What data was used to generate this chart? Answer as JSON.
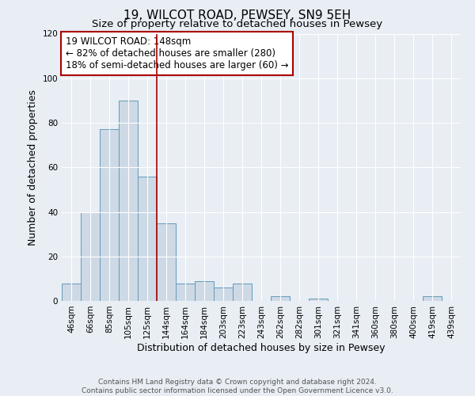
{
  "title": "19, WILCOT ROAD, PEWSEY, SN9 5EH",
  "subtitle": "Size of property relative to detached houses in Pewsey",
  "xlabel": "Distribution of detached houses by size in Pewsey",
  "ylabel": "Number of detached properties",
  "bins": [
    "46sqm",
    "66sqm",
    "85sqm",
    "105sqm",
    "125sqm",
    "144sqm",
    "164sqm",
    "184sqm",
    "203sqm",
    "223sqm",
    "243sqm",
    "262sqm",
    "282sqm",
    "301sqm",
    "321sqm",
    "341sqm",
    "360sqm",
    "380sqm",
    "400sqm",
    "419sqm",
    "439sqm"
  ],
  "values": [
    8,
    40,
    77,
    90,
    56,
    35,
    8,
    9,
    6,
    8,
    0,
    2,
    0,
    1,
    0,
    0,
    0,
    0,
    0,
    2,
    0
  ],
  "bar_color": "#cdd9e5",
  "bar_edge_color": "#6699bb",
  "vline_pos": 5,
  "vline_color": "#aa0000",
  "annotation_text": "19 WILCOT ROAD: 148sqm\n← 82% of detached houses are smaller (280)\n18% of semi-detached houses are larger (60) →",
  "annotation_box_color": "#ffffff",
  "annotation_box_edge": "#aa0000",
  "ylim": [
    0,
    120
  ],
  "yticks": [
    0,
    20,
    40,
    60,
    80,
    100,
    120
  ],
  "footer_line1": "Contains HM Land Registry data © Crown copyright and database right 2024.",
  "footer_line2": "Contains public sector information licensed under the Open Government Licence v3.0.",
  "bg_color": "#e8eef4",
  "grid_color": "#ffffff",
  "title_fontsize": 11,
  "subtitle_fontsize": 9.5,
  "axis_label_fontsize": 9,
  "tick_fontsize": 7.5,
  "annotation_fontsize": 8.5,
  "footer_fontsize": 6.5
}
